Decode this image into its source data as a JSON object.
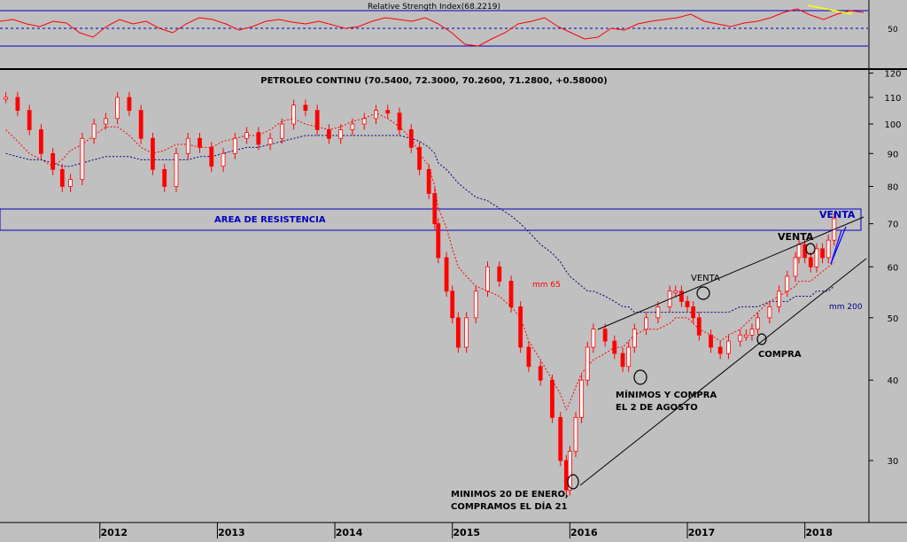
{
  "rsi_panel": {
    "title": "Relative Strength Index(68.2219)",
    "tick_label": "50"
  },
  "main_panel": {
    "title": "PETROLEO CONTINU (70.5400, 72.3000, 70.2600, 71.2800, +0.58000)",
    "y_ticks": [
      "120",
      "110",
      "100",
      "90",
      "80",
      "70",
      "60",
      "50",
      "40",
      "30"
    ],
    "x_ticks": [
      "2012",
      "2013",
      "2014",
      "2015",
      "2016",
      "2017",
      "2018"
    ]
  },
  "annotations": {
    "resistance": "AREA DE RESISTENCIA",
    "venta_top": "VENTA",
    "venta_mid": "VENTA",
    "venta_low": "VENTA",
    "mm65": "mm 65",
    "mm200": "mm 200",
    "compra": "COMPRA",
    "minimos_agosto_1": "MÍNIMOS Y COMPRA",
    "minimos_agosto_2": "EL 2 DE AGOSTO",
    "minimos_enero_1": "MINIMOS 20 DE ENERO,",
    "minimos_enero_2": "COMPRAMOS EL DÍA 21"
  },
  "colors": {
    "background": "#c0c0c0",
    "candles": "#ff0000",
    "frame": "#000000",
    "channel": "#0000c0",
    "resistance_text": "#0000c0",
    "mm65": "#ff0000",
    "mm200": "#000080",
    "rsi_line": "#ff0000",
    "rsi_trend": "#ffff00",
    "wedge": "#0000ff"
  },
  "chart_data": [
    {
      "type": "line",
      "title": "Relative Strength Index(68.2219)",
      "y_ticks": [
        50
      ],
      "reference_lines": [
        70,
        50,
        30
      ],
      "series": [
        {
          "values": [
            58,
            60,
            55,
            52,
            58,
            56,
            45,
            40,
            52,
            60,
            55,
            58,
            50,
            45,
            55,
            62,
            60,
            55,
            48,
            52,
            58,
            60,
            57,
            55,
            58,
            54,
            50,
            52,
            58,
            62,
            60,
            58,
            62,
            55,
            45,
            32,
            30,
            38,
            45,
            55,
            58,
            62,
            52,
            45,
            38,
            40,
            50,
            48,
            55,
            58,
            60,
            62,
            66,
            58,
            55,
            52,
            56,
            58,
            62,
            68,
            72,
            65,
            60,
            66,
            70,
            68
          ]
        }
      ]
    },
    {
      "type": "candlestick",
      "title": "PETROLEO CONTINU (70.5400, 72.3000, 70.2600, 71.2800, +0.58000)",
      "y_scale": "log",
      "ylim": [
        24,
        125
      ],
      "y_ticks": [
        120,
        110,
        100,
        90,
        80,
        70,
        60,
        50,
        40,
        30
      ],
      "x_ticks": [
        "2012",
        "2013",
        "2014",
        "2015",
        "2016",
        "2017",
        "2018"
      ],
      "xlim": [
        2011.15,
        2018.5
      ],
      "resistance_band": [
        70.5,
        78
      ],
      "x": [
        2011.2,
        2011.3,
        2011.4,
        2011.5,
        2011.6,
        2011.68,
        2011.75,
        2011.85,
        2011.95,
        2012.05,
        2012.15,
        2012.25,
        2012.35,
        2012.45,
        2012.55,
        2012.65,
        2012.75,
        2012.85,
        2012.95,
        2013.05,
        2013.15,
        2013.25,
        2013.35,
        2013.45,
        2013.55,
        2013.65,
        2013.75,
        2013.85,
        2013.95,
        2014.05,
        2014.15,
        2014.25,
        2014.35,
        2014.45,
        2014.55,
        2014.65,
        2014.72,
        2014.8,
        2014.85,
        2014.88,
        2014.95,
        2015.0,
        2015.05,
        2015.12,
        2015.2,
        2015.3,
        2015.4,
        2015.5,
        2015.58,
        2015.65,
        2015.75,
        2015.85,
        2015.92,
        2015.97,
        2016.0,
        2016.05,
        2016.1,
        2016.15,
        2016.2,
        2016.3,
        2016.38,
        2016.45,
        2016.5,
        2016.55,
        2016.65,
        2016.75,
        2016.85,
        2016.9,
        2016.95,
        2017.0,
        2017.05,
        2017.1,
        2017.2,
        2017.28,
        2017.35,
        2017.45,
        2017.5,
        2017.55,
        2017.6,
        2017.7,
        2017.78,
        2017.85,
        2017.92,
        2017.95,
        2018.0,
        2018.05,
        2018.1,
        2018.15,
        2018.2,
        2018.25
      ],
      "values": [
        110,
        105,
        98,
        90,
        85,
        80,
        82,
        95,
        100,
        102,
        110,
        105,
        95,
        85,
        80,
        90,
        95,
        92,
        86,
        90,
        95,
        97,
        93,
        95,
        100,
        107,
        105,
        98,
        95,
        98,
        100,
        102,
        105,
        104,
        98,
        92,
        85,
        78,
        70,
        62,
        55,
        50,
        45,
        50,
        55,
        60,
        57,
        52,
        45,
        42,
        40,
        35,
        30,
        27,
        31,
        35,
        40,
        45,
        48,
        46,
        44,
        42,
        45,
        48,
        50,
        52,
        55,
        55,
        53,
        52,
        50,
        47,
        45,
        44,
        46,
        47,
        47,
        48,
        50,
        52,
        55,
        58,
        62,
        65,
        62,
        60,
        64,
        62,
        66,
        71.28
      ],
      "ma": [
        {
          "name": "mm 65",
          "values": [
            98,
            94,
            90,
            88,
            86,
            88,
            91,
            93,
            96,
            99,
            99,
            96,
            92,
            90,
            91,
            93,
            93,
            92,
            92,
            94,
            95,
            96,
            96,
            98,
            101,
            102,
            100,
            99,
            98,
            99,
            101,
            102,
            104,
            102,
            99,
            95,
            90,
            86,
            80,
            74,
            69,
            64,
            60,
            58,
            56,
            55,
            54,
            52,
            50,
            46,
            43,
            40,
            38,
            36,
            37,
            39,
            41,
            42,
            43,
            44,
            45,
            45,
            46,
            47,
            48,
            48,
            49,
            50,
            50,
            50,
            49,
            48,
            47,
            46,
            47,
            48,
            49,
            50,
            51,
            53,
            54,
            55,
            56,
            57,
            57,
            57,
            58,
            59,
            60,
            61
          ]
        },
        {
          "name": "mm 200",
          "values": [
            90,
            89,
            88,
            88,
            87,
            86,
            86,
            87,
            88,
            89,
            89,
            89,
            88,
            88,
            88,
            88,
            88,
            89,
            89,
            90,
            91,
            92,
            92,
            93,
            94,
            95,
            96,
            96,
            96,
            96,
            96,
            96,
            96,
            96,
            96,
            95,
            94,
            92,
            90,
            87,
            85,
            83,
            81,
            79,
            77,
            76,
            74,
            72,
            70,
            68,
            65,
            63,
            61,
            59,
            58,
            57,
            56,
            55,
            55,
            54,
            53,
            52,
            52,
            51,
            51,
            51,
            51,
            51,
            51,
            51,
            51,
            51,
            51,
            51,
            51,
            52,
            52,
            52,
            52,
            53,
            53,
            53,
            54,
            54,
            54,
            54,
            55,
            55,
            55,
            56
          ]
        }
      ]
    }
  ]
}
